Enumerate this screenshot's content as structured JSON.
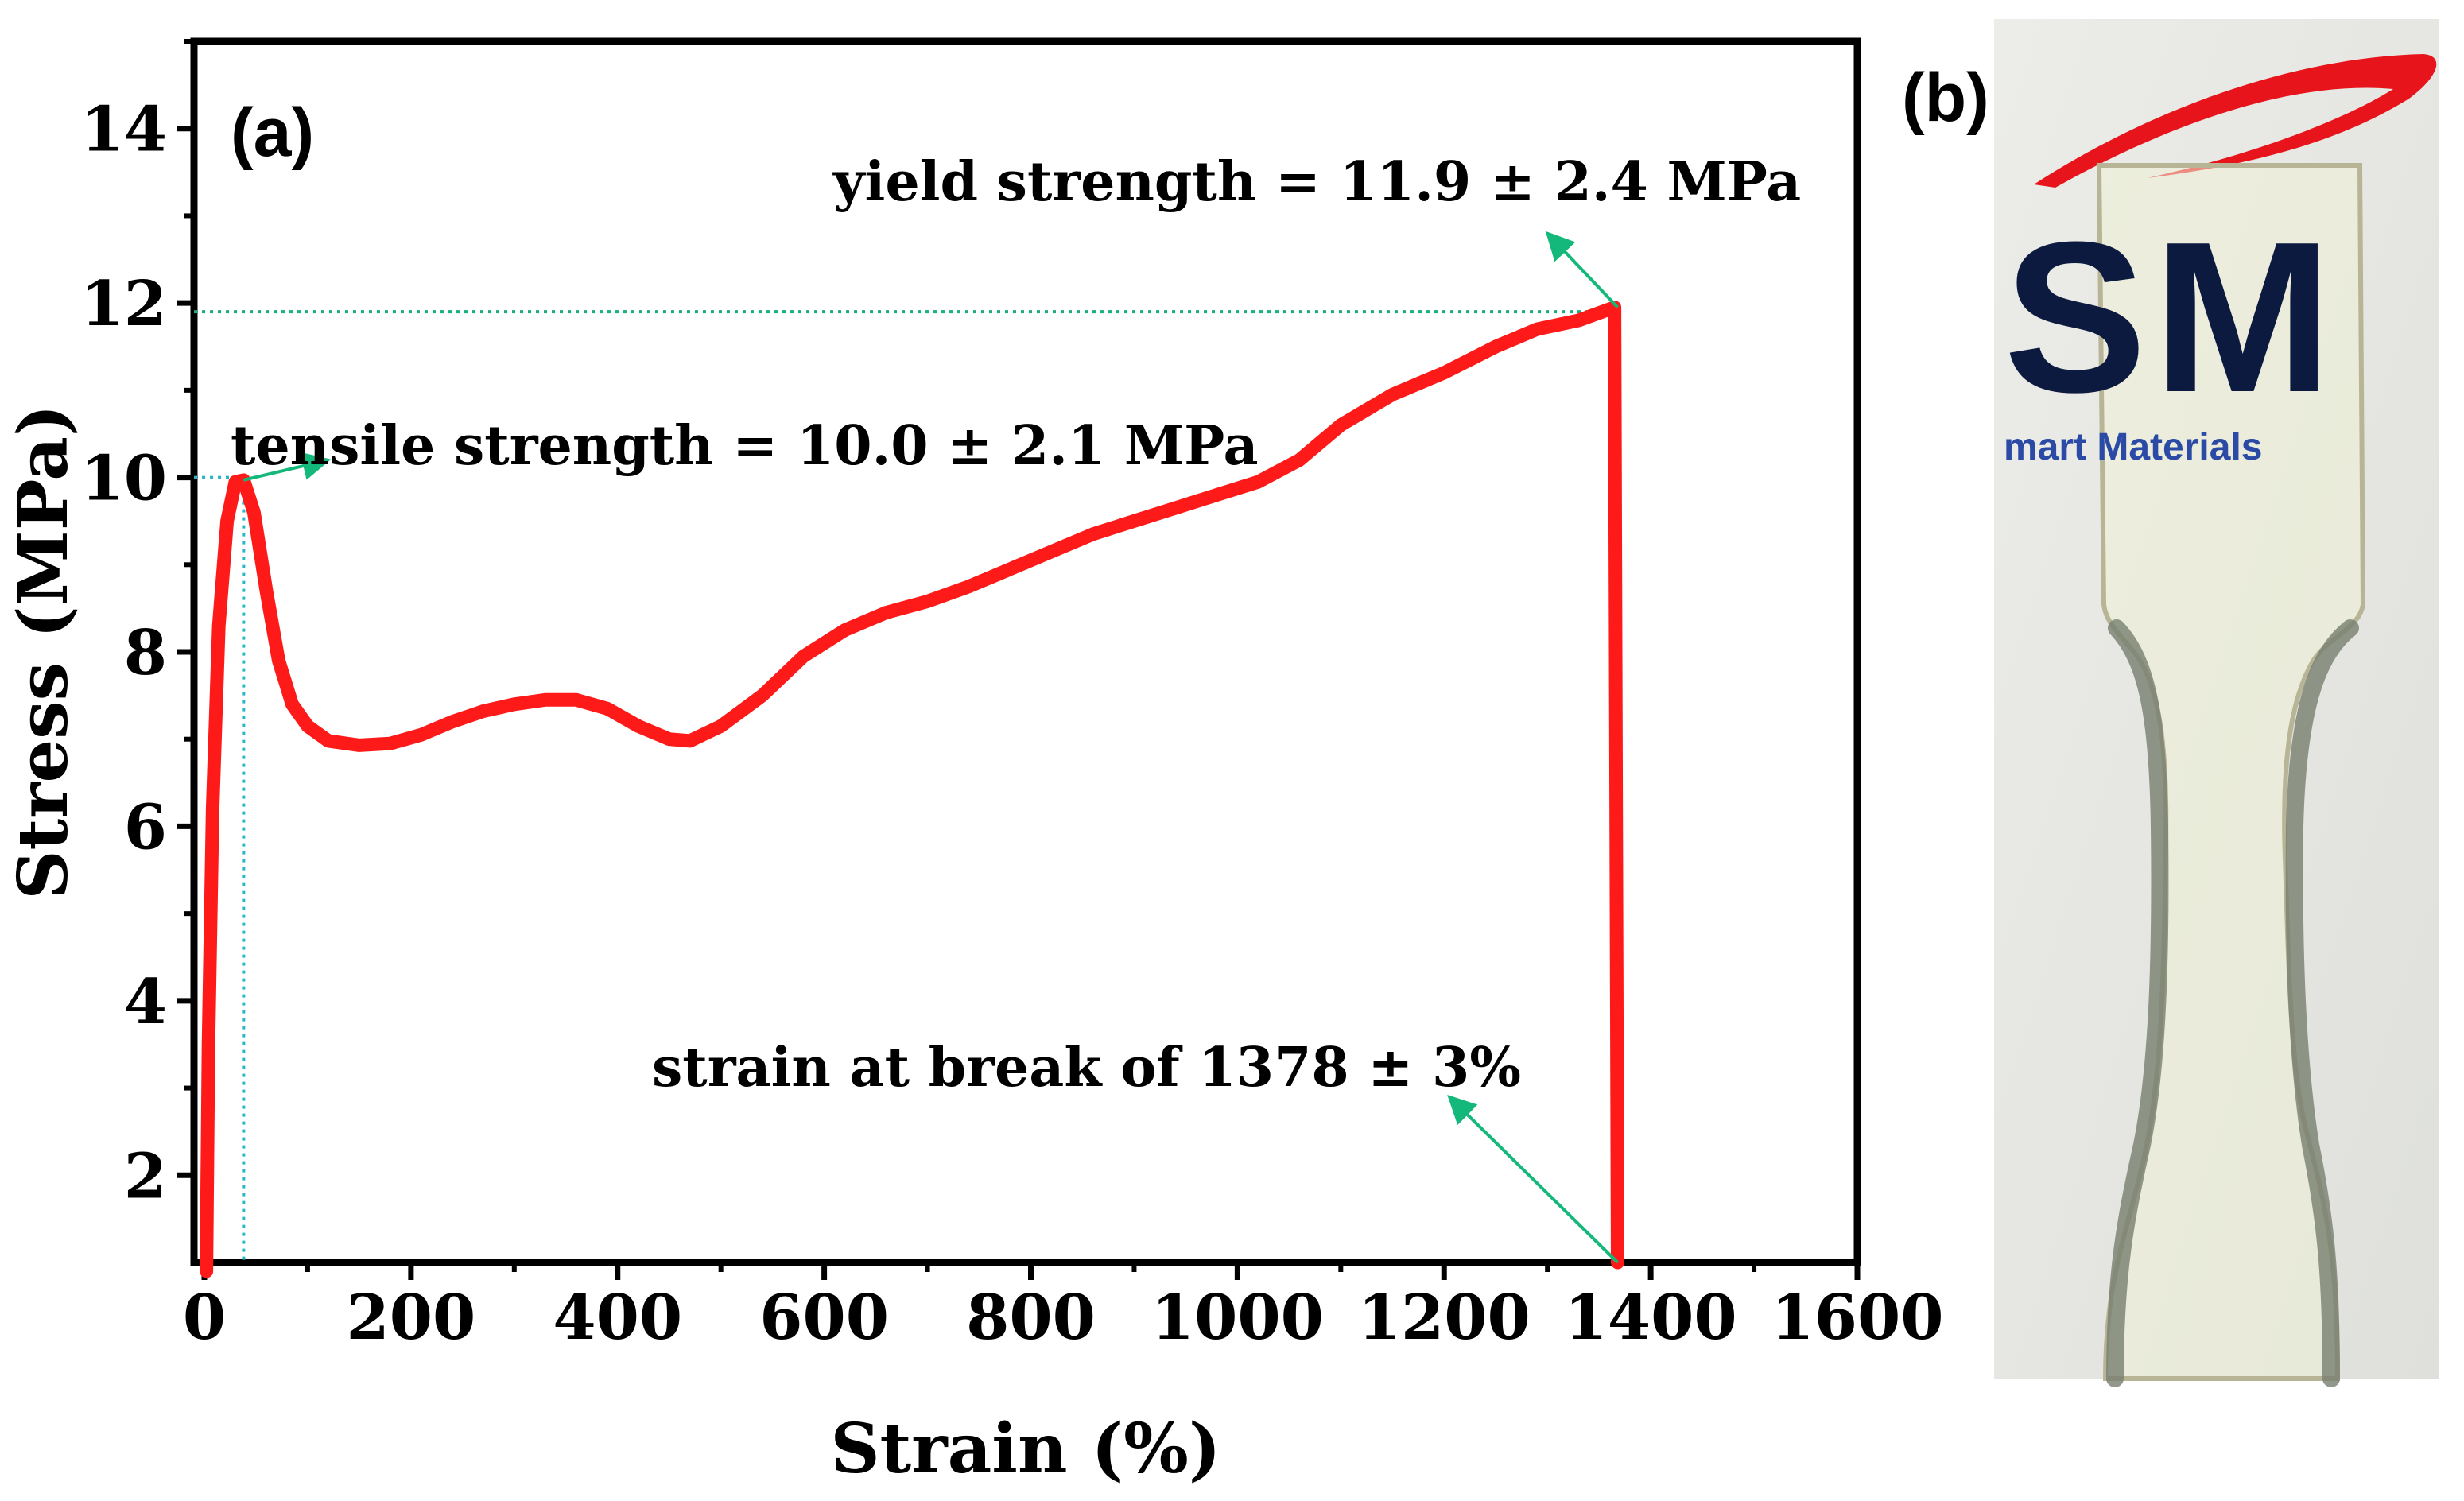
{
  "chart_data": {
    "type": "line",
    "panel_label": "(a)",
    "title": "",
    "xlabel": "Strain (%)",
    "ylabel": "Stress (MPa)",
    "xlim": [
      -10,
      1600
    ],
    "ylim": [
      1,
      15
    ],
    "x_ticks": [
      0,
      200,
      400,
      600,
      800,
      1000,
      1200,
      1400,
      1600
    ],
    "y_ticks": [
      2,
      4,
      6,
      8,
      10,
      12,
      14
    ],
    "grid": false,
    "series": [
      {
        "name": "stress-strain curve",
        "color": "#ff1a1a",
        "points": [
          [
            2,
            0.9
          ],
          [
            4,
            3.5
          ],
          [
            8,
            6.2
          ],
          [
            14,
            8.3
          ],
          [
            22,
            9.5
          ],
          [
            30,
            9.95
          ],
          [
            38,
            9.97
          ],
          [
            48,
            9.6
          ],
          [
            60,
            8.7
          ],
          [
            72,
            7.9
          ],
          [
            85,
            7.4
          ],
          [
            100,
            7.15
          ],
          [
            120,
            6.98
          ],
          [
            150,
            6.93
          ],
          [
            180,
            6.95
          ],
          [
            210,
            7.05
          ],
          [
            240,
            7.2
          ],
          [
            270,
            7.32
          ],
          [
            300,
            7.4
          ],
          [
            330,
            7.45
          ],
          [
            360,
            7.45
          ],
          [
            390,
            7.35
          ],
          [
            420,
            7.15
          ],
          [
            450,
            7.0
          ],
          [
            470,
            6.98
          ],
          [
            500,
            7.15
          ],
          [
            540,
            7.5
          ],
          [
            580,
            7.95
          ],
          [
            620,
            8.25
          ],
          [
            660,
            8.45
          ],
          [
            700,
            8.58
          ],
          [
            740,
            8.75
          ],
          [
            780,
            8.95
          ],
          [
            820,
            9.15
          ],
          [
            860,
            9.35
          ],
          [
            900,
            9.5
          ],
          [
            940,
            9.65
          ],
          [
            980,
            9.8
          ],
          [
            1020,
            9.95
          ],
          [
            1060,
            10.2
          ],
          [
            1100,
            10.6
          ],
          [
            1150,
            10.95
          ],
          [
            1200,
            11.2
          ],
          [
            1250,
            11.5
          ],
          [
            1290,
            11.7
          ],
          [
            1330,
            11.8
          ],
          [
            1365,
            11.95
          ],
          [
            1368,
            1.0
          ]
        ]
      }
    ],
    "reference_lines": {
      "color": "#29b6c8",
      "tensile_x": 38,
      "tensile_y": 10.0,
      "yield_y": 11.9,
      "yield_x": 1368
    },
    "annotations": [
      {
        "name": "yield-annotation",
        "text": "yield strength = 11.9 ± 2.4 MPa",
        "point": [
          1368,
          11.95
        ],
        "arrow_to": [
          1300,
          12.8
        ]
      },
      {
        "name": "tensile-annotation",
        "text": "tensile strength = 10.0 ± 2.1 MPa",
        "point": [
          38,
          9.97
        ],
        "arrow_to": [
          120,
          10.2
        ]
      },
      {
        "name": "break-annotation",
        "text": "strain at break of 1378 ± 3%",
        "point": [
          1368,
          1.0
        ],
        "arrow_to": [
          1205,
          2.9
        ]
      }
    ]
  },
  "photo": {
    "panel_label": "(b)",
    "logo_text": "SM",
    "logo_subtext": "mart Materials"
  },
  "colors": {
    "curve": "#ff1a1a",
    "arrow": "#14b87a",
    "ref": "#29b6c8"
  }
}
